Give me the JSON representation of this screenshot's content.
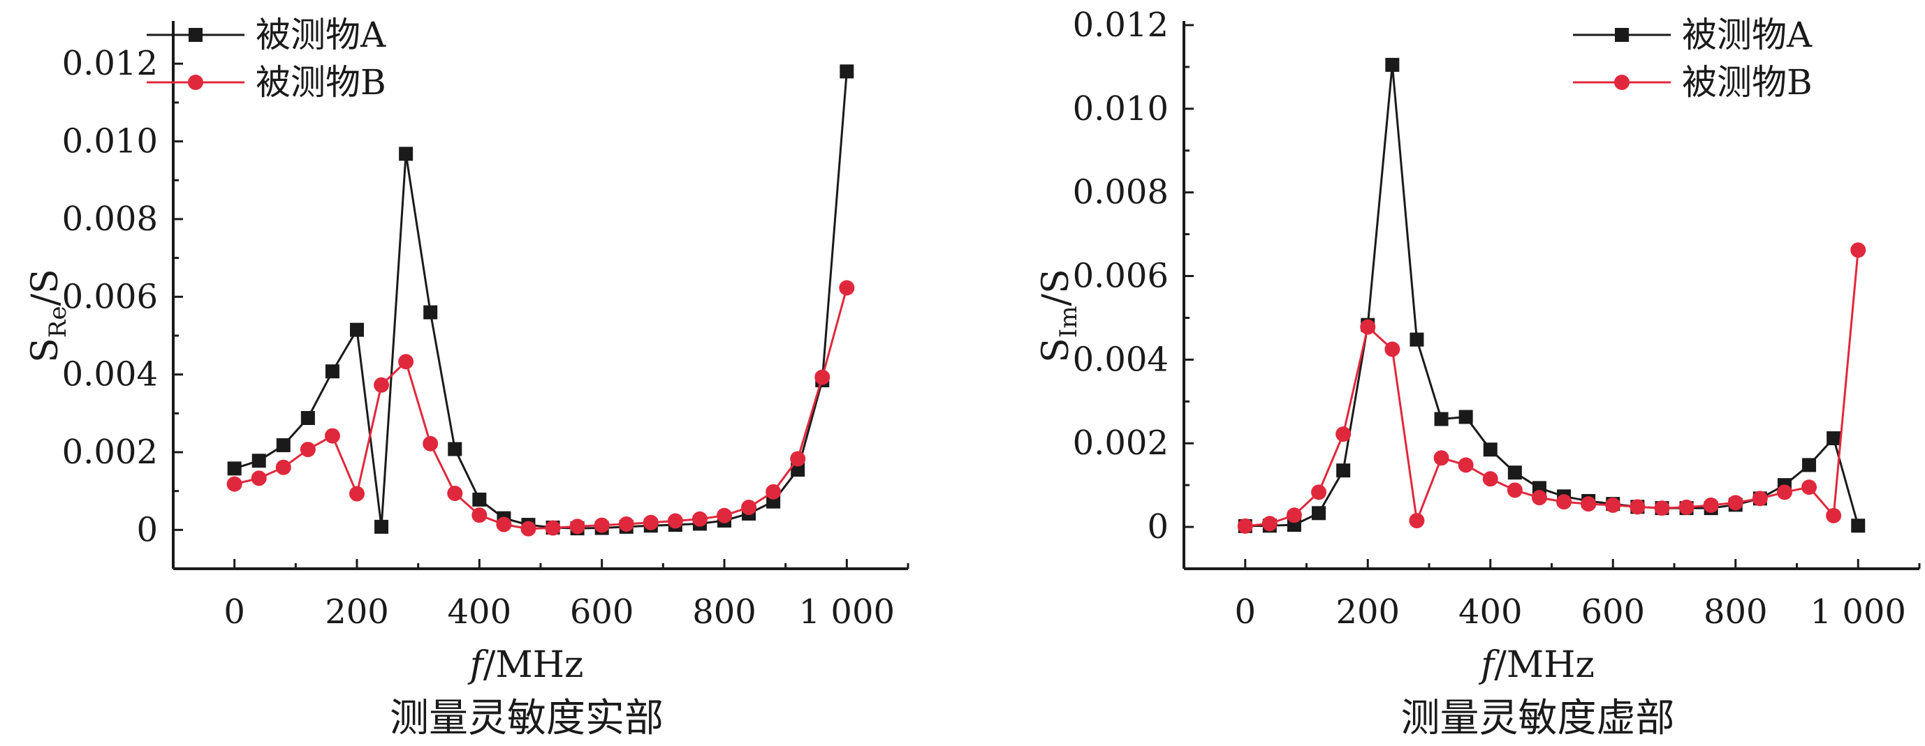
{
  "colors": {
    "series_a": "#1a1a1a",
    "series_b": "#e0283c",
    "axis": "#1a1a1a"
  },
  "chart_data": [
    {
      "type": "line",
      "title": "测量灵敏度实部",
      "xlabel_italic": "f",
      "xlabel_rest": "/MHz",
      "ylabel_main": "S",
      "ylabel_sub": "Re",
      "ylabel_rest": "/S",
      "xlim": [
        -100,
        1100
      ],
      "ylim": [
        -0.001,
        0.0131
      ],
      "x_ticks": [
        0,
        200,
        400,
        600,
        800,
        1000
      ],
      "x_tick_labels": [
        "0",
        "200",
        "400",
        "600",
        "800",
        "1 000"
      ],
      "y_ticks": [
        0,
        0.002,
        0.004,
        0.006,
        0.008,
        0.01,
        0.012
      ],
      "y_tick_labels": [
        "0",
        "0.002",
        "0.004",
        "0.006",
        "0.008",
        "0.010",
        "0.012"
      ],
      "legend_position": "top-left",
      "x": [
        0,
        40,
        80,
        120,
        160,
        200,
        240,
        280,
        320,
        360,
        400,
        440,
        480,
        520,
        560,
        600,
        640,
        680,
        720,
        760,
        800,
        840,
        880,
        920,
        960,
        1000
      ],
      "series": [
        {
          "name": "被测物A",
          "marker": "square",
          "values": [
            0.00158,
            0.00178,
            0.00218,
            0.00288,
            0.00408,
            0.00515,
            8e-05,
            0.00968,
            0.0056,
            0.00208,
            0.00078,
            0.0003,
            0.00013,
            6e-05,
            4e-05,
            5e-05,
            8e-05,
            0.00011,
            0.00013,
            0.00016,
            0.00024,
            0.00042,
            0.00073,
            0.00155,
            0.00385,
            0.0118
          ]
        },
        {
          "name": "被测物B",
          "marker": "circle",
          "values": [
            0.00118,
            0.00133,
            0.00161,
            0.00207,
            0.00242,
            0.00093,
            0.00373,
            0.00433,
            0.00222,
            0.00094,
            0.00038,
            0.00014,
            3e-05,
            5e-05,
            9e-05,
            0.00012,
            0.00015,
            0.00019,
            0.00023,
            0.00028,
            0.00037,
            0.00058,
            0.00098,
            0.00183,
            0.00393,
            0.00623
          ]
        }
      ]
    },
    {
      "type": "line",
      "title": "测量灵敏度虚部",
      "xlabel_italic": "f",
      "xlabel_rest": "/MHz",
      "ylabel_main": "S",
      "ylabel_sub": "Im",
      "ylabel_rest": "/S",
      "xlim": [
        -100,
        1100
      ],
      "ylim": [
        -0.001,
        0.0121
      ],
      "x_ticks": [
        0,
        200,
        400,
        600,
        800,
        1000
      ],
      "x_tick_labels": [
        "0",
        "200",
        "400",
        "600",
        "800",
        "1 000"
      ],
      "y_ticks": [
        0,
        0.002,
        0.004,
        0.006,
        0.008,
        0.01,
        0.012
      ],
      "y_tick_labels": [
        "0",
        "0.002",
        "0.004",
        "0.006",
        "0.008",
        "0.010",
        "0.012"
      ],
      "legend_position": "top-right",
      "x": [
        0,
        40,
        80,
        120,
        160,
        200,
        240,
        280,
        320,
        360,
        400,
        440,
        480,
        520,
        560,
        600,
        640,
        680,
        720,
        760,
        800,
        840,
        880,
        920,
        960,
        1000
      ],
      "series": [
        {
          "name": "被测物A",
          "marker": "square",
          "values": [
            2e-05,
            3e-05,
            5e-05,
            0.00033,
            0.00135,
            0.00483,
            0.01105,
            0.00448,
            0.00258,
            0.00263,
            0.00185,
            0.0013,
            0.00093,
            0.00073,
            0.00062,
            0.00055,
            0.00048,
            0.00045,
            0.00045,
            0.00045,
            0.00053,
            0.00068,
            0.001,
            0.00148,
            0.00212,
            3e-05
          ]
        },
        {
          "name": "被测物B",
          "marker": "circle",
          "values": [
            2e-05,
            8e-05,
            0.00028,
            0.00083,
            0.00222,
            0.00478,
            0.00425,
            0.00015,
            0.00165,
            0.00148,
            0.00115,
            0.00088,
            0.0007,
            0.0006,
            0.00055,
            0.00052,
            0.00048,
            0.00045,
            0.00047,
            0.00052,
            0.00058,
            0.00068,
            0.00083,
            0.00095,
            0.00027,
            0.00662
          ]
        }
      ]
    }
  ]
}
